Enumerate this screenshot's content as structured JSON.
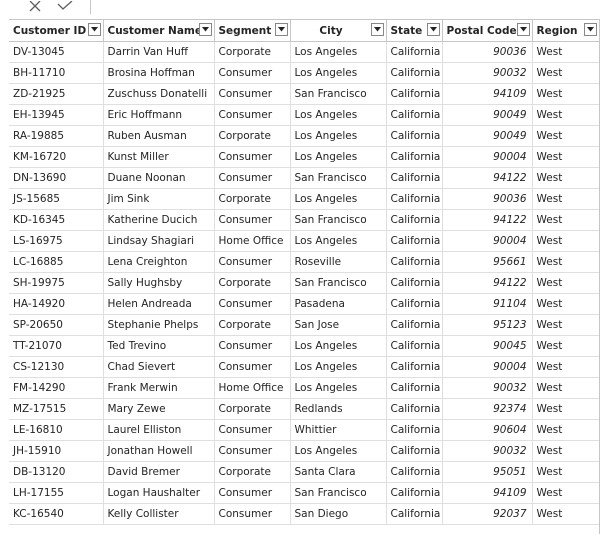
{
  "columns": [
    {
      "label": "Customer ID",
      "key": "id"
    },
    {
      "label": "Customer Name",
      "key": "name"
    },
    {
      "label": "Segment",
      "key": "segment"
    },
    {
      "label": "City",
      "key": "city"
    },
    {
      "label": "State",
      "key": "state"
    },
    {
      "label": "Postal Code",
      "key": "postal"
    },
    {
      "label": "Region",
      "key": "region"
    }
  ],
  "rows": [
    {
      "id": "DV-13045",
      "name": "Darrin Van Huff",
      "segment": "Corporate",
      "city": "Los Angeles",
      "state": "California",
      "postal": "90036",
      "region": "West"
    },
    {
      "id": "BH-11710",
      "name": "Brosina Hoffman",
      "segment": "Consumer",
      "city": "Los Angeles",
      "state": "California",
      "postal": "90032",
      "region": "West"
    },
    {
      "id": "ZD-21925",
      "name": "Zuschuss Donatelli",
      "segment": "Consumer",
      "city": "San Francisco",
      "state": "California",
      "postal": "94109",
      "region": "West"
    },
    {
      "id": "EH-13945",
      "name": "Eric Hoffmann",
      "segment": "Consumer",
      "city": "Los Angeles",
      "state": "California",
      "postal": "90049",
      "region": "West"
    },
    {
      "id": "RA-19885",
      "name": "Ruben Ausman",
      "segment": "Corporate",
      "city": "Los Angeles",
      "state": "California",
      "postal": "90049",
      "region": "West"
    },
    {
      "id": "KM-16720",
      "name": "Kunst Miller",
      "segment": "Consumer",
      "city": "Los Angeles",
      "state": "California",
      "postal": "90004",
      "region": "West"
    },
    {
      "id": "DN-13690",
      "name": "Duane Noonan",
      "segment": "Consumer",
      "city": "San Francisco",
      "state": "California",
      "postal": "94122",
      "region": "West"
    },
    {
      "id": "JS-15685",
      "name": "Jim Sink",
      "segment": "Corporate",
      "city": "Los Angeles",
      "state": "California",
      "postal": "90036",
      "region": "West"
    },
    {
      "id": "KD-16345",
      "name": "Katherine Ducich",
      "segment": "Consumer",
      "city": "San Francisco",
      "state": "California",
      "postal": "94122",
      "region": "West"
    },
    {
      "id": "LS-16975",
      "name": "Lindsay Shagiari",
      "segment": "Home Office",
      "city": "Los Angeles",
      "state": "California",
      "postal": "90004",
      "region": "West"
    },
    {
      "id": "LC-16885",
      "name": "Lena Creighton",
      "segment": "Consumer",
      "city": "Roseville",
      "state": "California",
      "postal": "95661",
      "region": "West"
    },
    {
      "id": "SH-19975",
      "name": "Sally Hughsby",
      "segment": "Corporate",
      "city": "San Francisco",
      "state": "California",
      "postal": "94122",
      "region": "West"
    },
    {
      "id": "HA-14920",
      "name": "Helen Andreada",
      "segment": "Consumer",
      "city": "Pasadena",
      "state": "California",
      "postal": "91104",
      "region": "West"
    },
    {
      "id": "SP-20650",
      "name": "Stephanie Phelps",
      "segment": "Corporate",
      "city": "San Jose",
      "state": "California",
      "postal": "95123",
      "region": "West"
    },
    {
      "id": "TT-21070",
      "name": "Ted Trevino",
      "segment": "Consumer",
      "city": "Los Angeles",
      "state": "California",
      "postal": "90045",
      "region": "West"
    },
    {
      "id": "CS-12130",
      "name": "Chad Sievert",
      "segment": "Consumer",
      "city": "Los Angeles",
      "state": "California",
      "postal": "90004",
      "region": "West"
    },
    {
      "id": "FM-14290",
      "name": "Frank Merwin",
      "segment": "Home Office",
      "city": "Los Angeles",
      "state": "California",
      "postal": "90032",
      "region": "West"
    },
    {
      "id": "MZ-17515",
      "name": "Mary Zewe",
      "segment": "Corporate",
      "city": "Redlands",
      "state": "California",
      "postal": "92374",
      "region": "West"
    },
    {
      "id": "LE-16810",
      "name": "Laurel Elliston",
      "segment": "Consumer",
      "city": "Whittier",
      "state": "California",
      "postal": "90604",
      "region": "West"
    },
    {
      "id": "JH-15910",
      "name": "Jonathan Howell",
      "segment": "Consumer",
      "city": "Los Angeles",
      "state": "California",
      "postal": "90032",
      "region": "West"
    },
    {
      "id": "DB-13120",
      "name": "David Bremer",
      "segment": "Corporate",
      "city": "Santa Clara",
      "state": "California",
      "postal": "95051",
      "region": "West"
    },
    {
      "id": "LH-17155",
      "name": "Logan Haushalter",
      "segment": "Consumer",
      "city": "San Francisco",
      "state": "California",
      "postal": "94109",
      "region": "West"
    },
    {
      "id": "KC-16540",
      "name": "Kelly Collister",
      "segment": "Consumer",
      "city": "San Diego",
      "state": "California",
      "postal": "92037",
      "region": "West"
    }
  ],
  "icons": {
    "cancel": "close-icon",
    "commit": "checkmark-icon",
    "filter": "chevron-down-icon"
  },
  "colors": {
    "grid_line": "#e1dfdd",
    "header_line": "#c8c6c4",
    "text": "#252423"
  }
}
